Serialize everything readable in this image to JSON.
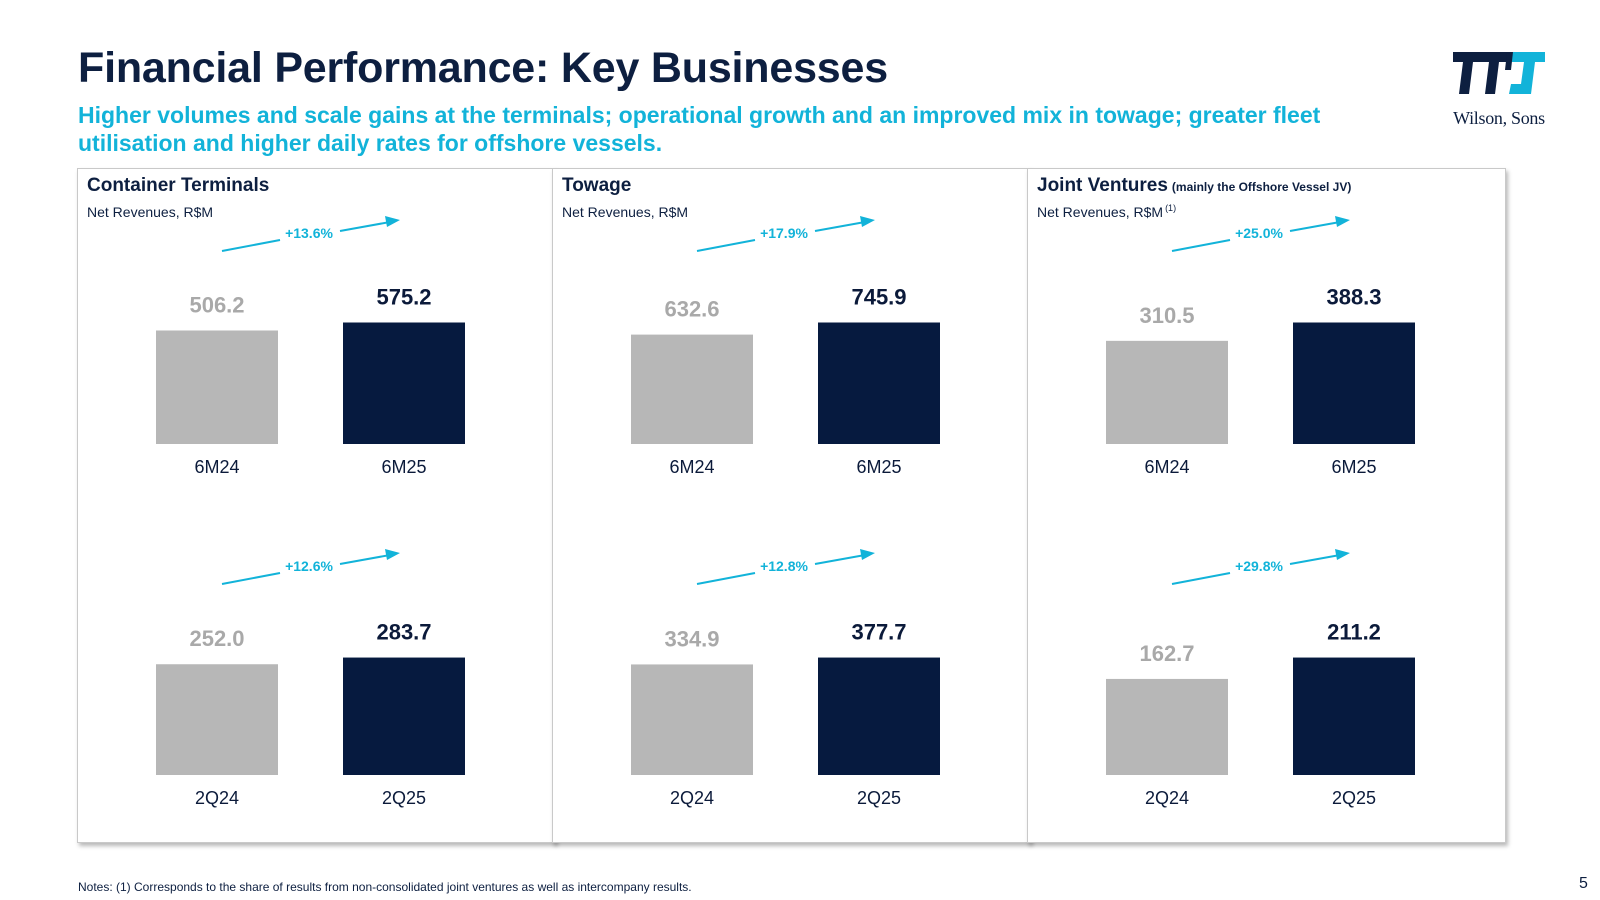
{
  "slide": {
    "title": "Financial Performance: Key Businesses",
    "subtitle": "Higher volumes and scale gains at the terminals; operational growth and an improved mix in towage; greater fleet utilisation and higher daily rates for offshore vessels.",
    "notes": "Notes: (1) Corresponds to the share of results from non-consolidated joint ventures as well as intercompany results.",
    "page_number": "5"
  },
  "logo": {
    "text": "Wilson, Sons",
    "icon": "wilson-sons-logo-icon"
  },
  "colors": {
    "prior": "#b7b7b7",
    "current": "#061a3f",
    "accent": "#12b3d9",
    "title": "#0d1f40"
  },
  "panels": [
    {
      "title": "Container Terminals",
      "title_note": "",
      "subtitle": "Net Revenues, R$M",
      "subtitle_note": ""
    },
    {
      "title": "Towage",
      "title_note": "",
      "subtitle": "Net Revenues, R$M",
      "subtitle_note": ""
    },
    {
      "title": "Joint Ventures",
      "title_note": "(mainly the Offshore Vessel JV)",
      "subtitle": "Net Revenues, R$M",
      "subtitle_note": "(1)"
    }
  ],
  "chart_data": [
    {
      "type": "bar",
      "panel": "Container Terminals",
      "period": "6M",
      "categories": [
        "6M24",
        "6M25"
      ],
      "values": [
        506.2,
        575.2
      ],
      "value_labels": [
        "506.2",
        "575.2"
      ],
      "growth": "+13.6%"
    },
    {
      "type": "bar",
      "panel": "Container Terminals",
      "period": "2Q",
      "categories": [
        "2Q24",
        "2Q25"
      ],
      "values": [
        252.0,
        283.7
      ],
      "value_labels": [
        "252.0",
        "283.7"
      ],
      "growth": "+12.6%"
    },
    {
      "type": "bar",
      "panel": "Towage",
      "period": "6M",
      "categories": [
        "6M24",
        "6M25"
      ],
      "values": [
        632.6,
        745.9
      ],
      "value_labels": [
        "632.6",
        "745.9"
      ],
      "growth": "+17.9%"
    },
    {
      "type": "bar",
      "panel": "Towage",
      "period": "2Q",
      "categories": [
        "2Q24",
        "2Q25"
      ],
      "values": [
        334.9,
        377.7
      ],
      "value_labels": [
        "334.9",
        "377.7"
      ],
      "growth": "+12.8%"
    },
    {
      "type": "bar",
      "panel": "Joint Ventures",
      "period": "6M",
      "categories": [
        "6M24",
        "6M25"
      ],
      "values": [
        310.5,
        388.3
      ],
      "value_labels": [
        "310.5",
        "388.3"
      ],
      "growth": "+25.0%"
    },
    {
      "type": "bar",
      "panel": "Joint Ventures",
      "period": "2Q",
      "categories": [
        "2Q24",
        "2Q25"
      ],
      "values": [
        162.7,
        211.2
      ],
      "value_labels": [
        "162.7",
        "211.2"
      ],
      "growth": "+29.8%"
    }
  ]
}
